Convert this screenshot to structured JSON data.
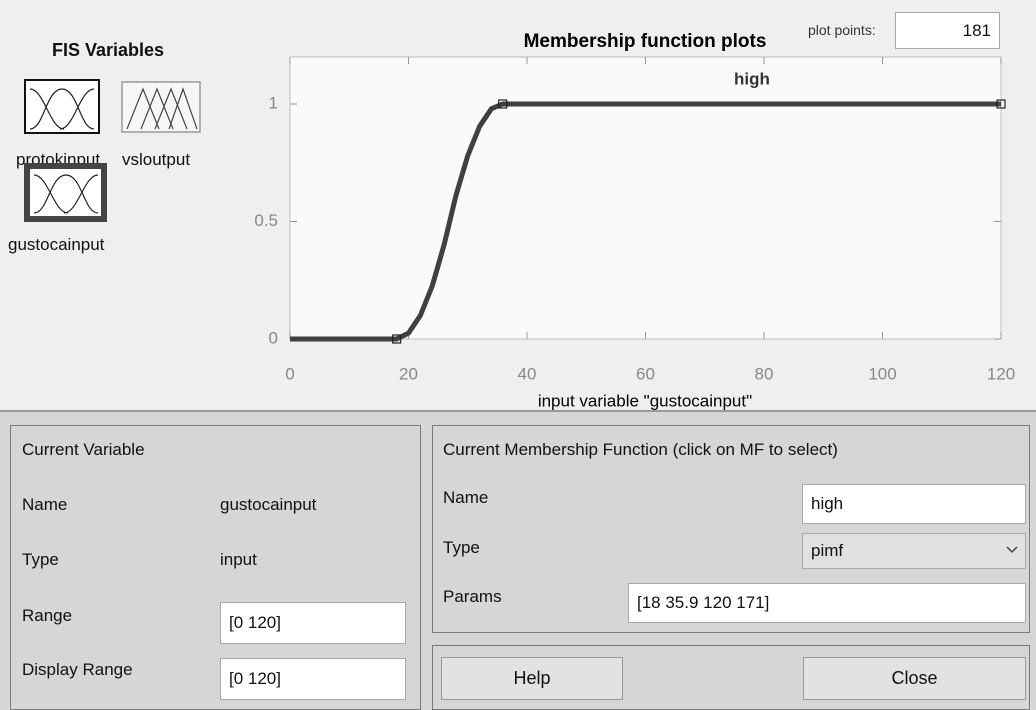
{
  "fis_variables": {
    "title": "FIS Variables",
    "items": [
      "protokinput",
      "vsloutput",
      "gustocainput"
    ]
  },
  "plot_points": {
    "label": "plot points:",
    "value": 181
  },
  "chart_data": {
    "type": "line",
    "title": "Membership function plots",
    "x_label": "input variable \"gustocainput\"",
    "annotation": "high",
    "x": [
      0,
      18,
      20,
      22,
      24,
      26,
      28,
      30,
      32,
      34,
      35.9,
      120
    ],
    "values": [
      0,
      0,
      0.025,
      0.1,
      0.225,
      0.4,
      0.61,
      0.78,
      0.905,
      0.98,
      1,
      1
    ],
    "color": "#404040",
    "xlim": [
      0,
      120
    ],
    "ylim": [
      0,
      1.2
    ],
    "xticks": [
      0,
      20,
      40,
      60,
      80,
      100,
      120
    ],
    "yticks": [
      0,
      0.5,
      1
    ]
  },
  "current_variable": {
    "title": "Current Variable",
    "fields": [
      [
        "Name",
        "gustocainput"
      ],
      [
        "Type",
        "input"
      ],
      [
        "Range",
        "[0 120]"
      ],
      [
        "Display Range",
        "[0 120]"
      ]
    ]
  },
  "current_mf": {
    "title": "Current Membership Function (click on MF to select)",
    "fields": [
      [
        "Name",
        "high"
      ],
      [
        "Type",
        "pimf"
      ],
      [
        "Params",
        "[18 35.9 120 171]"
      ]
    ]
  },
  "buttons": [
    "Help",
    "Close"
  ]
}
